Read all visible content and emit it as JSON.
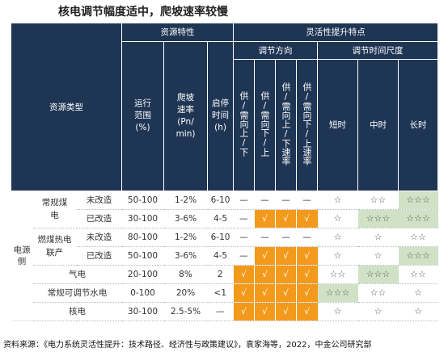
{
  "title": "核电调节幅度适中，爬坡速率较慢",
  "headers": {
    "resource_type": "资源类型",
    "resource_props": "资源特性",
    "flex_props": "灵活性提升特点",
    "direction": "调节方向",
    "time_scale": "调节时间尺度",
    "range": "运行范围(%)",
    "range_l1": "运行",
    "range_l2": "范围",
    "range_l3": "(%)",
    "ramp_l1": "爬坡",
    "ramp_l2": "速率",
    "ramp_l3": "(Pn/",
    "ramp_l4": "min)",
    "start_l1": "启停",
    "start_l2": "时间",
    "start_l3": "(h)",
    "dir1": "供/需向上/下",
    "dir2": "供/需向下/上",
    "dir3": "供/需向上/下速率",
    "dir4": "供/需向下/上速率",
    "short": "短时",
    "mid": "中时",
    "long": "长时"
  },
  "side_label": "电源侧",
  "rows": [
    {
      "group": "常规煤电",
      "sub": "未改造",
      "range": "50-100",
      "ramp": "1-2%",
      "start": "6-10",
      "d1": "—",
      "d2": "—",
      "d3": "—",
      "d4": "—",
      "short": "☆",
      "mid": "☆☆",
      "long": "☆☆☆"
    },
    {
      "group": "",
      "sub": "已改造",
      "range": "30-100",
      "ramp": "3-6%",
      "start": "4-5",
      "d1": "—",
      "d2": "√",
      "d3": "√",
      "d4": "√",
      "short": "☆",
      "mid": "☆☆☆",
      "long": "☆☆☆"
    },
    {
      "group": "燃煤热电联产",
      "sub": "未改造",
      "range": "80-100",
      "ramp": "1-2%",
      "start": "6-10",
      "d1": "—",
      "d2": "—",
      "d3": "—",
      "d4": "—",
      "short": "☆",
      "mid": "☆",
      "long": "☆☆"
    },
    {
      "group": "",
      "sub": "已改造",
      "range": "50-100",
      "ramp": "3-6%",
      "start": "4-5",
      "d1": "—",
      "d2": "√",
      "d3": "√",
      "d4": "√",
      "short": "☆",
      "mid": "☆",
      "long": "☆☆☆"
    },
    {
      "group": "气电",
      "sub": "",
      "range": "20-100",
      "ramp": "8%",
      "start": "2",
      "d1": "√",
      "d2": "√",
      "d3": "√",
      "d4": "√",
      "short": "☆☆",
      "mid": "☆☆☆",
      "long": "☆☆"
    },
    {
      "group": "常规可调节水电",
      "sub": "",
      "range": "0-100",
      "ramp": "20%",
      "start": "<1",
      "d1": "√",
      "d2": "√",
      "d3": "√",
      "d4": "√",
      "short": "☆☆☆",
      "mid": "☆☆",
      "long": "☆"
    },
    {
      "group": "核电",
      "sub": "",
      "range": "30-100",
      "ramp": "2.5-5%",
      "start": "—",
      "d1": "√",
      "d2": "√",
      "d3": "√",
      "d4": "√",
      "short": "☆",
      "mid": "☆",
      "long": "☆"
    }
  ],
  "highlight_colors": {
    "orange": "#f39a1d",
    "green": "#cfe2c6",
    "header": "#1f3554"
  },
  "footnote": "资料来源：《电力系统灵活性提升：技术路径、经济性与政策建议》，袁家海等，2022，中金公司研究部"
}
